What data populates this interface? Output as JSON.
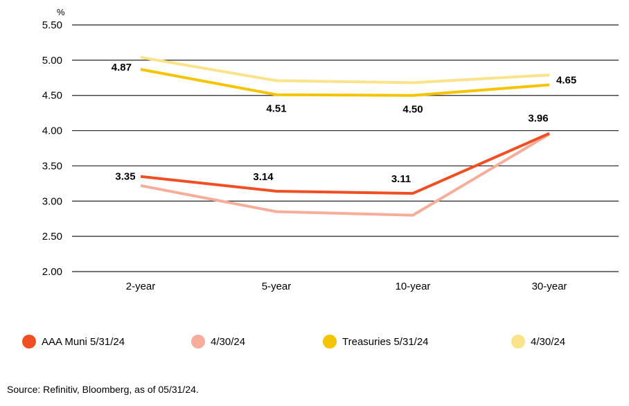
{
  "chart_data": {
    "type": "line",
    "unit_label": "%",
    "categories": [
      "2-year",
      "5-year",
      "10-year",
      "30-year"
    ],
    "ylim": [
      2.0,
      5.5
    ],
    "yticks": [
      "5.50",
      "5.00",
      "4.50",
      "4.00",
      "3.50",
      "3.00",
      "2.50",
      "2.00"
    ],
    "grid": true,
    "legend_position": "bottom",
    "series": [
      {
        "name": "4/30/24",
        "color": "#fbe38a",
        "values": [
          5.04,
          4.71,
          4.68,
          4.79
        ],
        "labels": null
      },
      {
        "name": "Treasuries 5/31/24",
        "color": "#f5c400",
        "values": [
          4.87,
          4.51,
          4.5,
          4.65
        ],
        "labels": [
          "4.87",
          "4.51",
          "4.50",
          "4.65"
        ]
      },
      {
        "name": "4/30/24",
        "color": "#f6ad9a",
        "values": [
          3.22,
          2.85,
          2.8,
          3.95
        ],
        "labels": null
      },
      {
        "name": "AAA Muni 5/31/24",
        "color": "#f04e23",
        "values": [
          3.35,
          3.14,
          3.11,
          3.96
        ],
        "labels": [
          "3.35",
          "3.14",
          "3.11",
          "3.96"
        ]
      }
    ]
  },
  "legend": [
    {
      "label": "AAA Muni 5/31/24",
      "color": "#f04e23"
    },
    {
      "label": "4/30/24",
      "color": "#f6ad9a"
    },
    {
      "label": "Treasuries 5/31/24",
      "color": "#f5c400"
    },
    {
      "label": "4/30/24",
      "color": "#fbe38a"
    }
  ],
  "source": "Source: Refinitiv, Bloomberg, as of 05/31/24."
}
